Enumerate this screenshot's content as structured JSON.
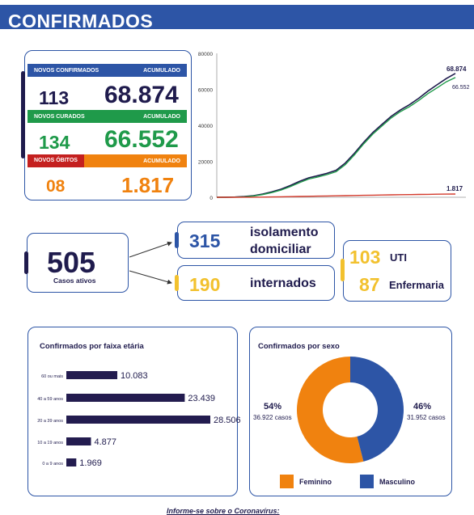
{
  "header": {
    "title": "CONFIRMADOS"
  },
  "stats": {
    "confirmed": {
      "label": "NOVOS CONFIRMADOS",
      "acc_label": "ACUMULADO",
      "new": "113",
      "total": "68.874",
      "color": "#2d55a6",
      "text_color": "#1f1b4d"
    },
    "cured": {
      "label": "NOVOS CURADOS",
      "acc_label": "ACUMULADO",
      "new": "134",
      "total": "66.552",
      "color": "#1f9a4a",
      "text_color": "#1f9a4a"
    },
    "deaths": {
      "label": "NOVOS ÓBITOS",
      "acc_label": "ACUMULADO",
      "new": "08",
      "total": "1.817",
      "color": "#f0820f",
      "text_color": "#f0820f",
      "label_bg": "#c4201f"
    }
  },
  "active": {
    "total": "505",
    "label": "Casos ativos",
    "isolation": {
      "value": "315",
      "label_line1": "isolamento",
      "label_line2": "domiciliar"
    },
    "hospitalized": {
      "value": "190",
      "label": "internados"
    },
    "uti": {
      "value": "103",
      "label": "UTI"
    },
    "ward": {
      "value": "87",
      "label": "Enfermaria"
    }
  },
  "chart_data": [
    {
      "type": "line",
      "yticks": [
        "80000",
        "60000",
        "40000",
        "20000",
        "0"
      ],
      "ylim": [
        0,
        80000
      ],
      "end_labels": [
        "68.874",
        "66.552",
        "1.817"
      ],
      "series": [
        {
          "color": "#1f1b4d",
          "values": [
            0,
            50,
            150,
            400,
            900,
            1800,
            3000,
            4500,
            6500,
            8800,
            10800,
            12000,
            13300,
            15000,
            19000,
            24500,
            30500,
            36000,
            40500,
            45000,
            48500,
            51500,
            55000,
            59000,
            62500,
            66000,
            68874
          ]
        },
        {
          "color": "#1f9a4a",
          "values": [
            0,
            30,
            100,
            280,
            700,
            1500,
            2600,
            4000,
            5900,
            8100,
            10100,
            11300,
            12600,
            14200,
            18100,
            23600,
            29600,
            35100,
            39600,
            44100,
            47600,
            50400,
            53800,
            57600,
            60800,
            64200,
            66552
          ]
        },
        {
          "color": "#d33a2c",
          "values": [
            0,
            5,
            10,
            30,
            60,
            110,
            180,
            260,
            350,
            450,
            560,
            650,
            740,
            820,
            910,
            1000,
            1090,
            1180,
            1260,
            1340,
            1420,
            1500,
            1570,
            1640,
            1700,
            1760,
            1817
          ]
        }
      ]
    },
    {
      "type": "bar",
      "title": "Confirmados por faixa etária",
      "categories": [
        "60 ou mais",
        "40 a 59 anos",
        "20 a 39 anos",
        "10 a 19 anos",
        "0 a 9 anos"
      ],
      "values": [
        10083,
        23439,
        28506,
        4877,
        1969
      ],
      "value_labels": [
        "10.083",
        "23.439",
        "28.506",
        "4.877",
        "1.969"
      ],
      "xlim": [
        0,
        28506
      ],
      "bar_color": "#231c4f"
    },
    {
      "type": "pie",
      "title": "Confirmados por sexo",
      "slices": [
        {
          "name": "Feminino",
          "value": 54,
          "pct_label": "54%",
          "count_label": "36.922 casos",
          "color": "#f0820f"
        },
        {
          "name": "Masculino",
          "value": 46,
          "pct_label": "46%",
          "count_label": "31.952 casos",
          "color": "#2d55a6"
        }
      ]
    }
  ],
  "footer": {
    "text": "Informe-se sobre o Coronavírus:"
  }
}
